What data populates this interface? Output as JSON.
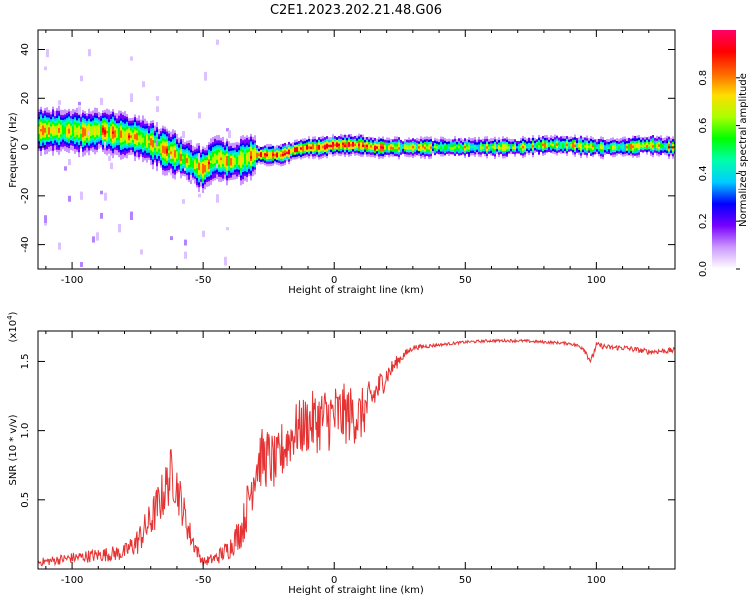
{
  "figure": {
    "title": "C2E1.2023.202.21.48.G06"
  },
  "chart_data": [
    {
      "type": "heatmap",
      "xlabel": "Height of straight line (km)",
      "ylabel": "Frequency (Hz)",
      "xlim": [
        -113,
        130
      ],
      "ylim": [
        -50,
        48
      ],
      "xticks": [
        "-100",
        "-50",
        "0",
        "50",
        "100"
      ],
      "xtick_values": [
        -100,
        -50,
        0,
        50,
        100
      ],
      "yticks": [
        "-40",
        "-20",
        "0",
        "20",
        "40"
      ],
      "ytick_values": [
        -40,
        -20,
        0,
        20,
        40
      ],
      "ridge": {
        "x": [
          -112,
          -105,
          -100,
          -95,
          -90,
          -85,
          -80,
          -75,
          -70,
          -65,
          -60,
          -55,
          -50,
          -45,
          -40,
          -35,
          -30,
          -25,
          -20,
          -15,
          -10,
          -5,
          0,
          5,
          10,
          15,
          20,
          25,
          30,
          40,
          50,
          60,
          70,
          80,
          90,
          100,
          110,
          120,
          130
        ],
        "y": [
          7,
          7,
          7,
          6,
          7,
          6,
          5,
          4,
          2,
          -1,
          -3,
          -6,
          -9,
          -4,
          -6,
          -5,
          -3,
          -3,
          -3,
          -1,
          0,
          0,
          1,
          1,
          1,
          0,
          0,
          0,
          0,
          0,
          0,
          0,
          0,
          1,
          1,
          0,
          0,
          1,
          0
        ]
      },
      "colorbar": {
        "label": "Normalized spectral amplitude",
        "range": [
          0,
          1
        ],
        "ticks": [
          "0.0",
          "0.2",
          "0.4",
          "0.6",
          "0.8"
        ],
        "tick_values": [
          0,
          0.2,
          0.4,
          0.6,
          0.8
        ],
        "colors": [
          "#ffffff",
          "#cc99ff",
          "#7700ff",
          "#0000ff",
          "#00ccff",
          "#00ffaa",
          "#00ff00",
          "#aaff00",
          "#ffdd00",
          "#ff6600",
          "#ff0000",
          "#ff0066"
        ]
      }
    },
    {
      "type": "line",
      "xlabel": "Height of straight line (km)",
      "ylabel": "SNR (10 * v/v)",
      "scale_note": "(x10",
      "scale_exp": "4",
      "scale_close": ")",
      "xlim": [
        -113,
        130
      ],
      "ylim": [
        0,
        1.72
      ],
      "xticks": [
        "-100",
        "-50",
        "0",
        "50",
        "100"
      ],
      "xtick_values": [
        -100,
        -50,
        0,
        50,
        100
      ],
      "yticks": [
        "0.5",
        "1.0",
        "1.5"
      ],
      "ytick_values": [
        0.5,
        1.0,
        1.5
      ],
      "color": "#e53333",
      "series": [
        {
          "x": [
            -112,
            -100,
            -90,
            -80,
            -75,
            -70,
            -65,
            -62,
            -60,
            -58,
            -55,
            -52,
            -50,
            -45,
            -40,
            -35,
            -32,
            -30,
            -28,
            -25,
            -22,
            -20,
            -15,
            -10,
            -5,
            0,
            5,
            10,
            15,
            20,
            25,
            30,
            40,
            50,
            60,
            70,
            80,
            90,
            95,
            98,
            100,
            105,
            110,
            120,
            130
          ],
          "y": [
            0.05,
            0.08,
            0.1,
            0.12,
            0.2,
            0.35,
            0.55,
            0.7,
            0.6,
            0.45,
            0.25,
            0.12,
            0.05,
            0.08,
            0.15,
            0.3,
            0.55,
            0.75,
            0.8,
            0.8,
            0.75,
            0.85,
            1.0,
            1.05,
            1.08,
            1.1,
            1.12,
            1.1,
            1.25,
            1.4,
            1.52,
            1.6,
            1.62,
            1.64,
            1.65,
            1.65,
            1.64,
            1.63,
            1.6,
            1.5,
            1.62,
            1.6,
            1.6,
            1.57,
            1.58
          ],
          "noise": [
            0.03,
            0.04,
            0.05,
            0.06,
            0.1,
            0.14,
            0.18,
            0.2,
            0.18,
            0.14,
            0.1,
            0.05,
            0.03,
            0.05,
            0.08,
            0.14,
            0.2,
            0.22,
            0.22,
            0.22,
            0.2,
            0.22,
            0.2,
            0.22,
            0.24,
            0.25,
            0.22,
            0.2,
            0.14,
            0.08,
            0.04,
            0.02,
            0.01,
            0.01,
            0.01,
            0.01,
            0.01,
            0.01,
            0.02,
            0.03,
            0.02,
            0.02,
            0.02,
            0.02,
            0.02
          ]
        }
      ]
    }
  ]
}
